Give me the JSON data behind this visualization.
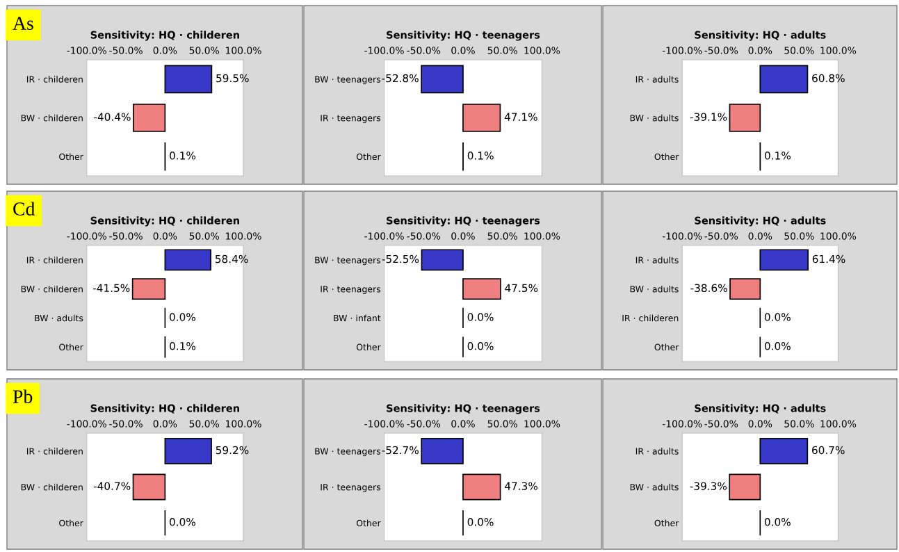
{
  "chart_data": [
    {
      "type": "bar",
      "orientation": "horizontal",
      "title": "Sensitivity: HQ · childeren",
      "annotations": [
        "As"
      ],
      "categories": [
        "IR · childeren",
        "BW · childeren",
        "Other"
      ],
      "values": [
        59.5,
        -40.4,
        0.1
      ],
      "value_labels": [
        "59.5%",
        "-40.4%",
        "0.1%"
      ],
      "colors": [
        "#3838c8",
        "#f08080",
        "#000000"
      ],
      "xlim": [
        -100,
        100
      ],
      "xticks": [
        {
          "value": -100,
          "label": "-100.0%"
        },
        {
          "value": -50,
          "label": "-50.0%"
        },
        {
          "value": 0,
          "label": "0.0%"
        },
        {
          "value": 50,
          "label": "50.0%"
        },
        {
          "value": 100,
          "label": "100.0%"
        }
      ],
      "grid": false,
      "legend": false
    },
    {
      "type": "bar",
      "orientation": "horizontal",
      "title": "Sensitivity: HQ · teenagers",
      "categories": [
        "BW · teenagers",
        "IR · teenagers",
        "Other"
      ],
      "values": [
        -52.8,
        47.1,
        0.1
      ],
      "value_labels": [
        "-52.8%",
        "47.1%",
        "0.1%"
      ],
      "colors": [
        "#3838c8",
        "#f08080",
        "#000000"
      ],
      "xlim": [
        -100,
        100
      ],
      "xticks": [
        {
          "value": -100,
          "label": "-100.0%"
        },
        {
          "value": -50,
          "label": "-50.0%"
        },
        {
          "value": 0,
          "label": "0.0%"
        },
        {
          "value": 50,
          "label": "50.0%"
        },
        {
          "value": 100,
          "label": "100.0%"
        }
      ],
      "grid": false,
      "legend": false
    },
    {
      "type": "bar",
      "orientation": "horizontal",
      "title": "Sensitivity: HQ · adults",
      "categories": [
        "IR · adults",
        "BW · adults",
        "Other"
      ],
      "values": [
        60.8,
        -39.1,
        0.1
      ],
      "value_labels": [
        "60.8%",
        "-39.1%",
        "0.1%"
      ],
      "colors": [
        "#3838c8",
        "#f08080",
        "#000000"
      ],
      "xlim": [
        -100,
        100
      ],
      "xticks": [
        {
          "value": -100,
          "label": "-100.0%"
        },
        {
          "value": -50,
          "label": "-50.0%"
        },
        {
          "value": 0,
          "label": "0.0%"
        },
        {
          "value": 50,
          "label": "50.0%"
        },
        {
          "value": 100,
          "label": "100.0%"
        }
      ],
      "grid": false,
      "legend": false
    },
    {
      "type": "bar",
      "orientation": "horizontal",
      "title": "Sensitivity: HQ · childeren",
      "annotations": [
        "Cd"
      ],
      "categories": [
        "IR · childeren",
        "BW · childeren",
        "BW · adults",
        "Other"
      ],
      "values": [
        58.4,
        -41.5,
        0.0,
        0.1
      ],
      "value_labels": [
        "58.4%",
        "-41.5%",
        "0.0%",
        "0.1%"
      ],
      "colors": [
        "#3838c8",
        "#f08080",
        "#000000",
        "#000000"
      ],
      "xlim": [
        -100,
        100
      ],
      "xticks": [
        {
          "value": -100,
          "label": "-100.0%"
        },
        {
          "value": -50,
          "label": "-50.0%"
        },
        {
          "value": 0,
          "label": "0.0%"
        },
        {
          "value": 50,
          "label": "50.0%"
        },
        {
          "value": 100,
          "label": "100.0%"
        }
      ],
      "grid": false,
      "legend": false
    },
    {
      "type": "bar",
      "orientation": "horizontal",
      "title": "Sensitivity: HQ · teenagers",
      "categories": [
        "BW · teenagers",
        "IR · teenagers",
        "BW · infant",
        "Other"
      ],
      "values": [
        -52.5,
        47.5,
        0.0,
        0.0
      ],
      "value_labels": [
        "-52.5%",
        "47.5%",
        "0.0%",
        "0.0%"
      ],
      "colors": [
        "#3838c8",
        "#f08080",
        "#000000",
        "#000000"
      ],
      "xlim": [
        -100,
        100
      ],
      "xticks": [
        {
          "value": -100,
          "label": "-100.0%"
        },
        {
          "value": -50,
          "label": "-50.0%"
        },
        {
          "value": 0,
          "label": "0.0%"
        },
        {
          "value": 50,
          "label": "50.0%"
        },
        {
          "value": 100,
          "label": "100.0%"
        }
      ],
      "grid": false,
      "legend": false
    },
    {
      "type": "bar",
      "orientation": "horizontal",
      "title": "Sensitivity: HQ · adults",
      "categories": [
        "IR · adults",
        "BW · adults",
        "IR · childeren",
        "Other"
      ],
      "values": [
        61.4,
        -38.6,
        0.0,
        0.0
      ],
      "value_labels": [
        "61.4%",
        "-38.6%",
        "0.0%",
        "0.0%"
      ],
      "colors": [
        "#3838c8",
        "#f08080",
        "#000000",
        "#000000"
      ],
      "xlim": [
        -100,
        100
      ],
      "xticks": [
        {
          "value": -100,
          "label": "-100.0%"
        },
        {
          "value": -50,
          "label": "-50.0%"
        },
        {
          "value": 0,
          "label": "0.0%"
        },
        {
          "value": 50,
          "label": "50.0%"
        },
        {
          "value": 100,
          "label": "100.0%"
        }
      ],
      "grid": false,
      "legend": false
    },
    {
      "type": "bar",
      "orientation": "horizontal",
      "title": "Sensitivity: HQ · childeren",
      "annotations": [
        "Pb"
      ],
      "categories": [
        "IR · childeren",
        "BW · childeren",
        "Other"
      ],
      "values": [
        59.2,
        -40.7,
        0.0
      ],
      "value_labels": [
        "59.2%",
        "-40.7%",
        "0.0%"
      ],
      "colors": [
        "#3838c8",
        "#f08080",
        "#000000"
      ],
      "xlim": [
        -100,
        100
      ],
      "xticks": [
        {
          "value": -100,
          "label": "-100.0%"
        },
        {
          "value": -50,
          "label": "-50.0%"
        },
        {
          "value": 0,
          "label": "0.0%"
        },
        {
          "value": 50,
          "label": "50.0%"
        },
        {
          "value": 100,
          "label": "100.0%"
        }
      ],
      "grid": false,
      "legend": false
    },
    {
      "type": "bar",
      "orientation": "horizontal",
      "title": "Sensitivity: HQ · teenagers",
      "categories": [
        "BW · teenagers",
        "IR · teenagers",
        "Other"
      ],
      "values": [
        -52.7,
        47.3,
        0.0
      ],
      "value_labels": [
        "-52.7%",
        "47.3%",
        "0.0%"
      ],
      "colors": [
        "#3838c8",
        "#f08080",
        "#000000"
      ],
      "xlim": [
        -100,
        100
      ],
      "xticks": [
        {
          "value": -100,
          "label": "-100.0%"
        },
        {
          "value": -50,
          "label": "-50.0%"
        },
        {
          "value": 0,
          "label": "0.0%"
        },
        {
          "value": 50,
          "label": "50.0%"
        },
        {
          "value": 100,
          "label": "100.0%"
        }
      ],
      "grid": false,
      "legend": false
    },
    {
      "type": "bar",
      "orientation": "horizontal",
      "title": "Sensitivity: HQ · adults",
      "categories": [
        "IR · adults",
        "BW · adults",
        "Other"
      ],
      "values": [
        60.7,
        -39.3,
        0.0
      ],
      "value_labels": [
        "60.7%",
        "-39.3%",
        "0.0%"
      ],
      "colors": [
        "#3838c8",
        "#f08080",
        "#000000"
      ],
      "xlim": [
        -100,
        100
      ],
      "xticks": [
        {
          "value": -100,
          "label": "-100.0%"
        },
        {
          "value": -50,
          "label": "-50.0%"
        },
        {
          "value": 0,
          "label": "0.0%"
        },
        {
          "value": 50,
          "label": "50.0%"
        },
        {
          "value": 100,
          "label": "100.0%"
        }
      ],
      "grid": false,
      "legend": false
    }
  ]
}
